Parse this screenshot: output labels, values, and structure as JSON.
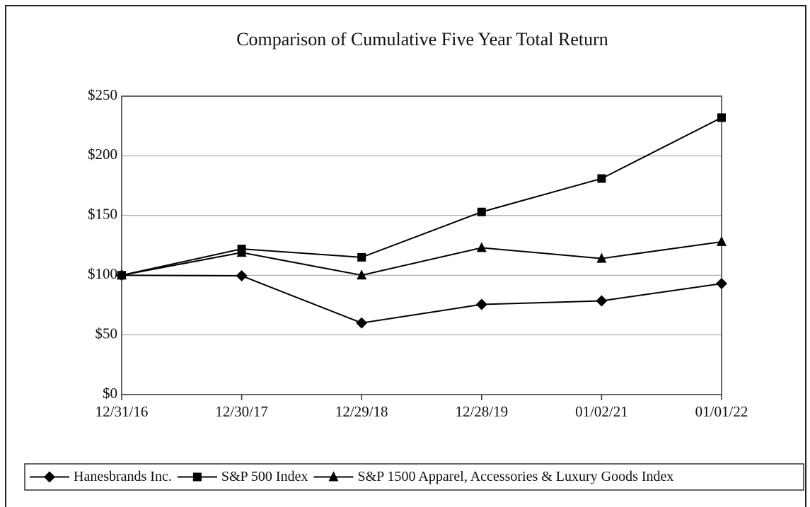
{
  "chart_data": {
    "type": "line",
    "title": "Comparison of Cumulative Five Year Total Return",
    "categories": [
      "12/31/16",
      "12/30/17",
      "12/29/18",
      "12/28/19",
      "01/02/21",
      "01/01/22"
    ],
    "series": [
      {
        "name": "Hanesbrands Inc.",
        "color": "#000000",
        "marker": "diamond",
        "values": [
          100,
          99.5,
          60,
          75.5,
          78.5,
          93
        ]
      },
      {
        "name": "S&P 500 Index",
        "color": "#000000",
        "marker": "square",
        "values": [
          100,
          122,
          115,
          153,
          181,
          232
        ]
      },
      {
        "name": "S&P 1500 Apparel, Accessories & Luxury Goods Index",
        "color": "#000000",
        "marker": "triangle",
        "values": [
          100,
          119,
          100,
          123,
          114,
          128
        ]
      }
    ],
    "ylim": [
      0,
      250
    ],
    "yticks": [
      {
        "value": 0,
        "label": "$0"
      },
      {
        "value": 50,
        "label": "$50"
      },
      {
        "value": 100,
        "label": "$100"
      },
      {
        "value": 150,
        "label": "$150"
      },
      {
        "value": 200,
        "label": "$200"
      },
      {
        "value": 250,
        "label": "$250"
      }
    ],
    "grid": true,
    "legend": "bottom"
  }
}
